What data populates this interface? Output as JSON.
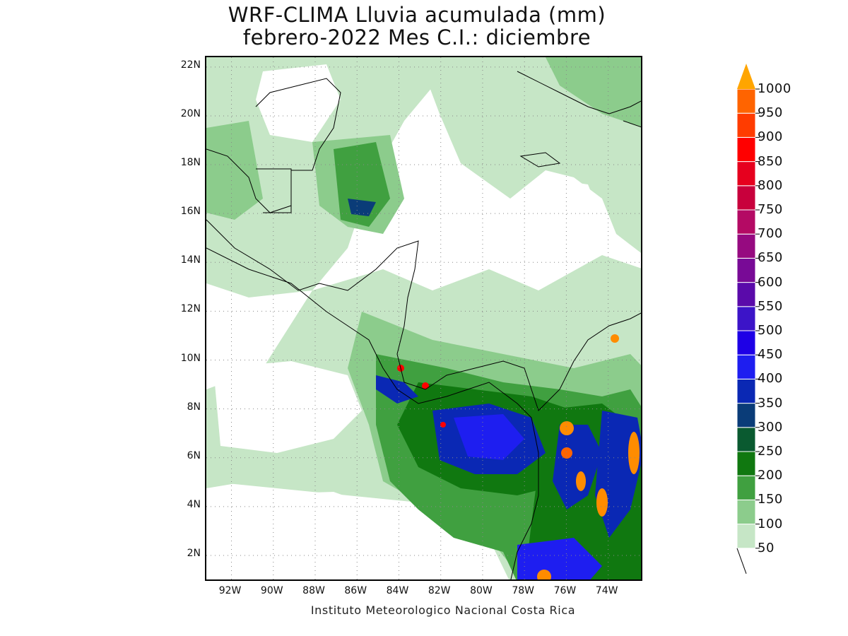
{
  "title": {
    "line1": "WRF-CLIMA Lluvia acumulada (mm)",
    "line2": "febrero-2022 Mes C.I.: diciembre"
  },
  "credit": "Instituto Meteorologico Nacional Costa Rica",
  "map": {
    "lon_range": [
      -93.2,
      -72.3
    ],
    "lat_range": [
      0.9,
      22.4
    ],
    "grid": "dotted",
    "lat_ticks": [
      "22N",
      "20N",
      "18N",
      "16N",
      "14N",
      "12N",
      "10N",
      "8N",
      "6N",
      "4N",
      "2N"
    ],
    "lat_values": [
      22,
      20,
      18,
      16,
      14,
      12,
      10,
      8,
      6,
      4,
      2
    ],
    "lon_ticks": [
      "92W",
      "90W",
      "88W",
      "86W",
      "84W",
      "82W",
      "80W",
      "78W",
      "76W",
      "74W"
    ],
    "lon_values": [
      -92,
      -90,
      -88,
      -86,
      -84,
      -82,
      -80,
      -78,
      -76,
      -74
    ]
  },
  "colorbar": {
    "levels": [
      "50",
      "100",
      "150",
      "200",
      "250",
      "300",
      "350",
      "400",
      "450",
      "500",
      "550",
      "600",
      "650",
      "700",
      "750",
      "800",
      "850",
      "900",
      "950",
      "1000"
    ],
    "colors": [
      "#c6e6c6",
      "#8ccc8c",
      "#40a040",
      "#107810",
      "#0a5a30",
      "#0a3c78",
      "#0a28b4",
      "#1e1ef0",
      "#1e00e6",
      "#3c14c8",
      "#5a0aaa",
      "#780a96",
      "#960a80",
      "#b40a64",
      "#c8003c",
      "#e6001e",
      "#ff0000",
      "#ff3c00",
      "#ff6400",
      "#ff8c00",
      "#ffa500"
    ],
    "extend": "max"
  }
}
